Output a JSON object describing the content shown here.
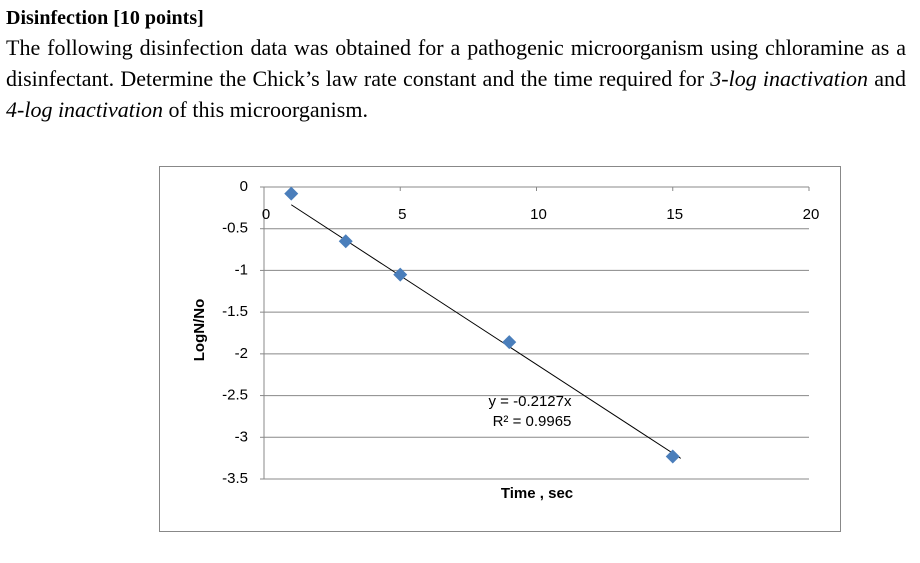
{
  "header": {
    "title": "Disinfection [10 points]"
  },
  "paragraph": [
    "The following disinfection data was obtained for a pathogenic microorganism using chloramine as a disinfectant. Determine the Chick’s law rate constant and the time required for ",
    "3-log inactivation",
    " and ",
    "4-log inactivation",
    " of this microorganism."
  ],
  "chart_data": {
    "type": "scatter",
    "x_label": "Time , sec",
    "y_label": "LogN/No",
    "x": [
      1,
      3,
      5,
      9,
      15
    ],
    "values": [
      -0.08,
      -0.65,
      -1.05,
      -1.86,
      -3.23
    ],
    "color": "#4a7ebb",
    "xlim": [
      0,
      20
    ],
    "xticks": [
      0,
      5,
      10,
      15,
      20
    ],
    "ylim": [
      -3.5,
      0
    ],
    "yticks": [
      0,
      -0.5,
      -1,
      -1.5,
      -2,
      -2.5,
      -3,
      -3.5
    ],
    "grid": true,
    "trendline": {
      "slope": -0.2127,
      "label": "y = -0.2127x",
      "r2_label": "R² = 0.9965"
    }
  }
}
